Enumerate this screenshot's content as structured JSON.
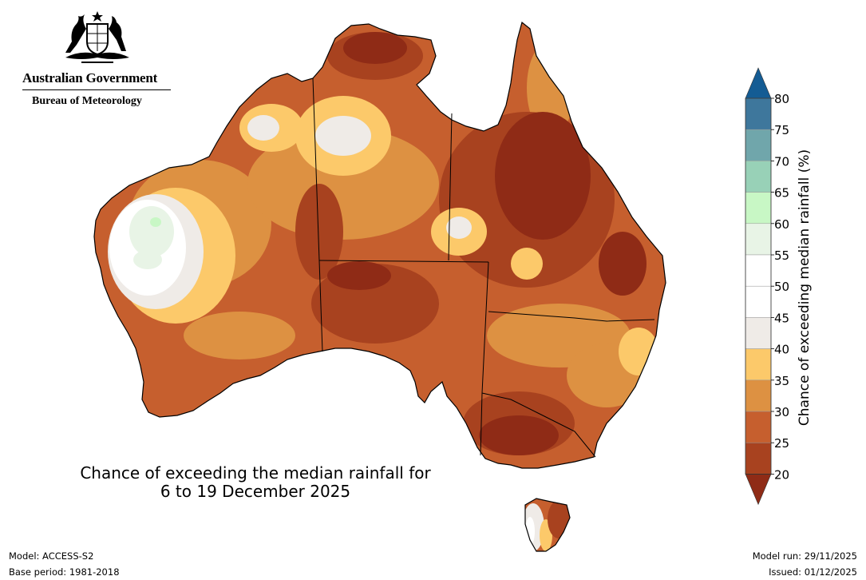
{
  "branding": {
    "government": "Australian Government",
    "bureau": "Bureau of Meteorology"
  },
  "map": {
    "title_line1": "Chance of exceeding the median rainfall for",
    "title_line2": "6 to 19 December 2025",
    "boundaries": "Australian state and territory borders",
    "dominant_category": "20-30% across most of the continent",
    "wetter_areas": [
      "interior Western Australia",
      "western Tasmania"
    ]
  },
  "colorbar": {
    "label": "Chance of exceeding median rainfall (%)",
    "ticks": [
      "20",
      "25",
      "30",
      "35",
      "40",
      "45",
      "50",
      "55",
      "60",
      "65",
      "70",
      "75",
      "80"
    ],
    "bins": [
      {
        "range": "<20",
        "color": "#8f2b16"
      },
      {
        "range": "20-25",
        "color": "#a8421f"
      },
      {
        "range": "25-30",
        "color": "#c65f2e"
      },
      {
        "range": "30-35",
        "color": "#dd9142"
      },
      {
        "range": "35-40",
        "color": "#fcc96a"
      },
      {
        "range": "40-45",
        "color": "#efebe7"
      },
      {
        "range": "45-50",
        "color": "#ffffff"
      },
      {
        "range": "50-55",
        "color": "#ffffff"
      },
      {
        "range": "55-60",
        "color": "#e8f4e6"
      },
      {
        "range": "60-65",
        "color": "#c8f7c5"
      },
      {
        "range": "65-70",
        "color": "#98d1b7"
      },
      {
        "range": "70-75",
        "color": "#70a6ab"
      },
      {
        "range": "75-80",
        "color": "#3e779c"
      },
      {
        "range": ">80",
        "color": "#145c94"
      }
    ]
  },
  "footer": {
    "model": "Model: ACCESS-S2",
    "base_period": "Base period: 1981-2018",
    "model_run": "Model run: 29/11/2025",
    "issued": "Issued: 01/12/2025"
  }
}
